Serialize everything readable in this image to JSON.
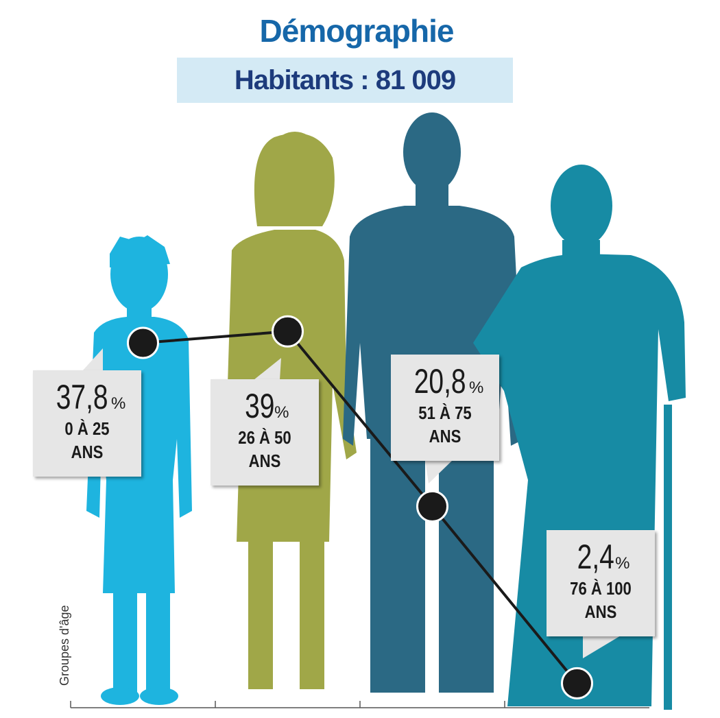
{
  "chart_data": {
    "type": "line",
    "title": "Démographie",
    "subtitle": "Habitants : 81 009",
    "y_label": "Groupes d'âge",
    "categories": [
      "0 À 25 ANS",
      "26 À 50 ANS",
      "51 À 75 ANS",
      "76 À 100 ANS"
    ],
    "values": [
      37.8,
      39,
      20.8,
      2.4
    ],
    "value_labels": [
      "37,8",
      "39",
      "20,8",
      "2,4"
    ],
    "unit": "%",
    "color": "#1a1a1a",
    "ylim": [
      0,
      45
    ]
  }
}
